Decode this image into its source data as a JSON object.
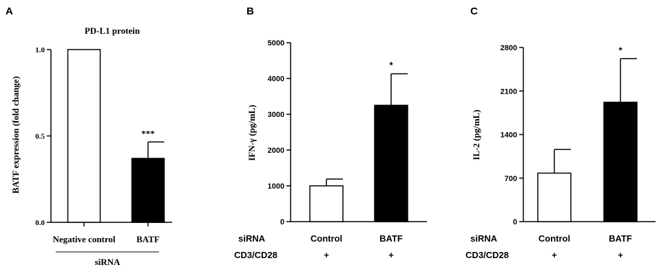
{
  "chart_data": [
    {
      "type": "bar",
      "panel_label": "A",
      "title": "PD-L1 protein",
      "ylabel": "BATF expression (fold change)",
      "xlabel": "siRNA",
      "categories": [
        "Negative control",
        "BATF"
      ],
      "values": [
        1.0,
        0.37
      ],
      "errors": [
        0,
        0.095
      ],
      "fills": [
        "#ffffff",
        "#000000"
      ],
      "significance": [
        "",
        "***"
      ],
      "ylim": [
        0,
        1.0
      ],
      "yticks": [
        0.0,
        0.5,
        1.0
      ],
      "ytick_labels": [
        "0.0",
        "0.5",
        "1.0"
      ]
    },
    {
      "type": "bar",
      "panel_label": "B",
      "title": "",
      "ylabel": "IFN-γ (pg/mL)",
      "categories": [
        "Control",
        "BATF"
      ],
      "values": [
        1000,
        3250
      ],
      "errors": [
        190,
        880
      ],
      "fills": [
        "#ffffff",
        "#000000"
      ],
      "significance": [
        "",
        "*"
      ],
      "ylim": [
        0,
        5000
      ],
      "yticks": [
        0,
        1000,
        2000,
        3000,
        4000,
        5000
      ],
      "ytick_labels": [
        "0",
        "1000",
        "2000",
        "3000",
        "4000",
        "5000"
      ],
      "row_labels": [
        "siRNA",
        "CD3/CD28"
      ],
      "cd3_cd28": [
        "+",
        "+"
      ]
    },
    {
      "type": "bar",
      "panel_label": "C",
      "title": "",
      "ylabel": "IL-2 (pg/mL)",
      "categories": [
        "Control",
        "BATF"
      ],
      "values": [
        780,
        1920
      ],
      "errors": [
        380,
        700
      ],
      "fills": [
        "#ffffff",
        "#000000"
      ],
      "significance": [
        "",
        "*"
      ],
      "ylim": [
        0,
        2800
      ],
      "yticks": [
        0,
        700,
        1400,
        2100,
        2800
      ],
      "ytick_labels": [
        "0",
        "700",
        "1400",
        "2100",
        "2800"
      ],
      "row_labels": [
        "siRNA",
        "CD3/CD28"
      ],
      "cd3_cd28": [
        "+",
        "+"
      ]
    }
  ]
}
